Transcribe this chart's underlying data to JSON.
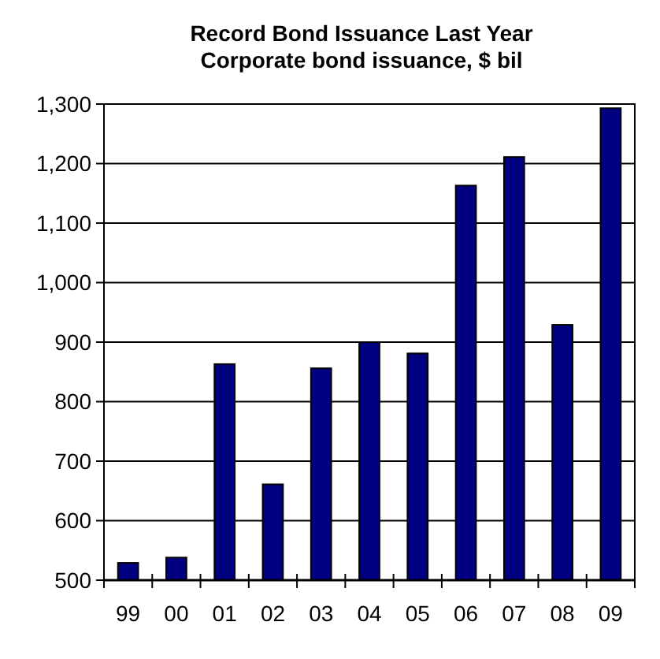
{
  "chart_data": {
    "type": "bar",
    "title": "Record Bond Issuance Last Year",
    "subtitle": "Corporate bond issuance, $ bil",
    "categories": [
      "99",
      "00",
      "01",
      "02",
      "03",
      "04",
      "05",
      "06",
      "07",
      "08",
      "09"
    ],
    "values": [
      529,
      538,
      863,
      661,
      856,
      900,
      881,
      1163,
      1211,
      929,
      1293
    ],
    "color": "#000080",
    "ylim": [
      500,
      1300
    ],
    "yticks": [
      {
        "value": 500,
        "label": "500"
      },
      {
        "value": 600,
        "label": "600"
      },
      {
        "value": 700,
        "label": "700"
      },
      {
        "value": 800,
        "label": "800"
      },
      {
        "value": 900,
        "label": "900"
      },
      {
        "value": 1000,
        "label": "1,000"
      },
      {
        "value": 1100,
        "label": "1,100"
      },
      {
        "value": 1200,
        "label": "1,200"
      },
      {
        "value": 1300,
        "label": "1,300"
      }
    ],
    "grid": "y"
  }
}
